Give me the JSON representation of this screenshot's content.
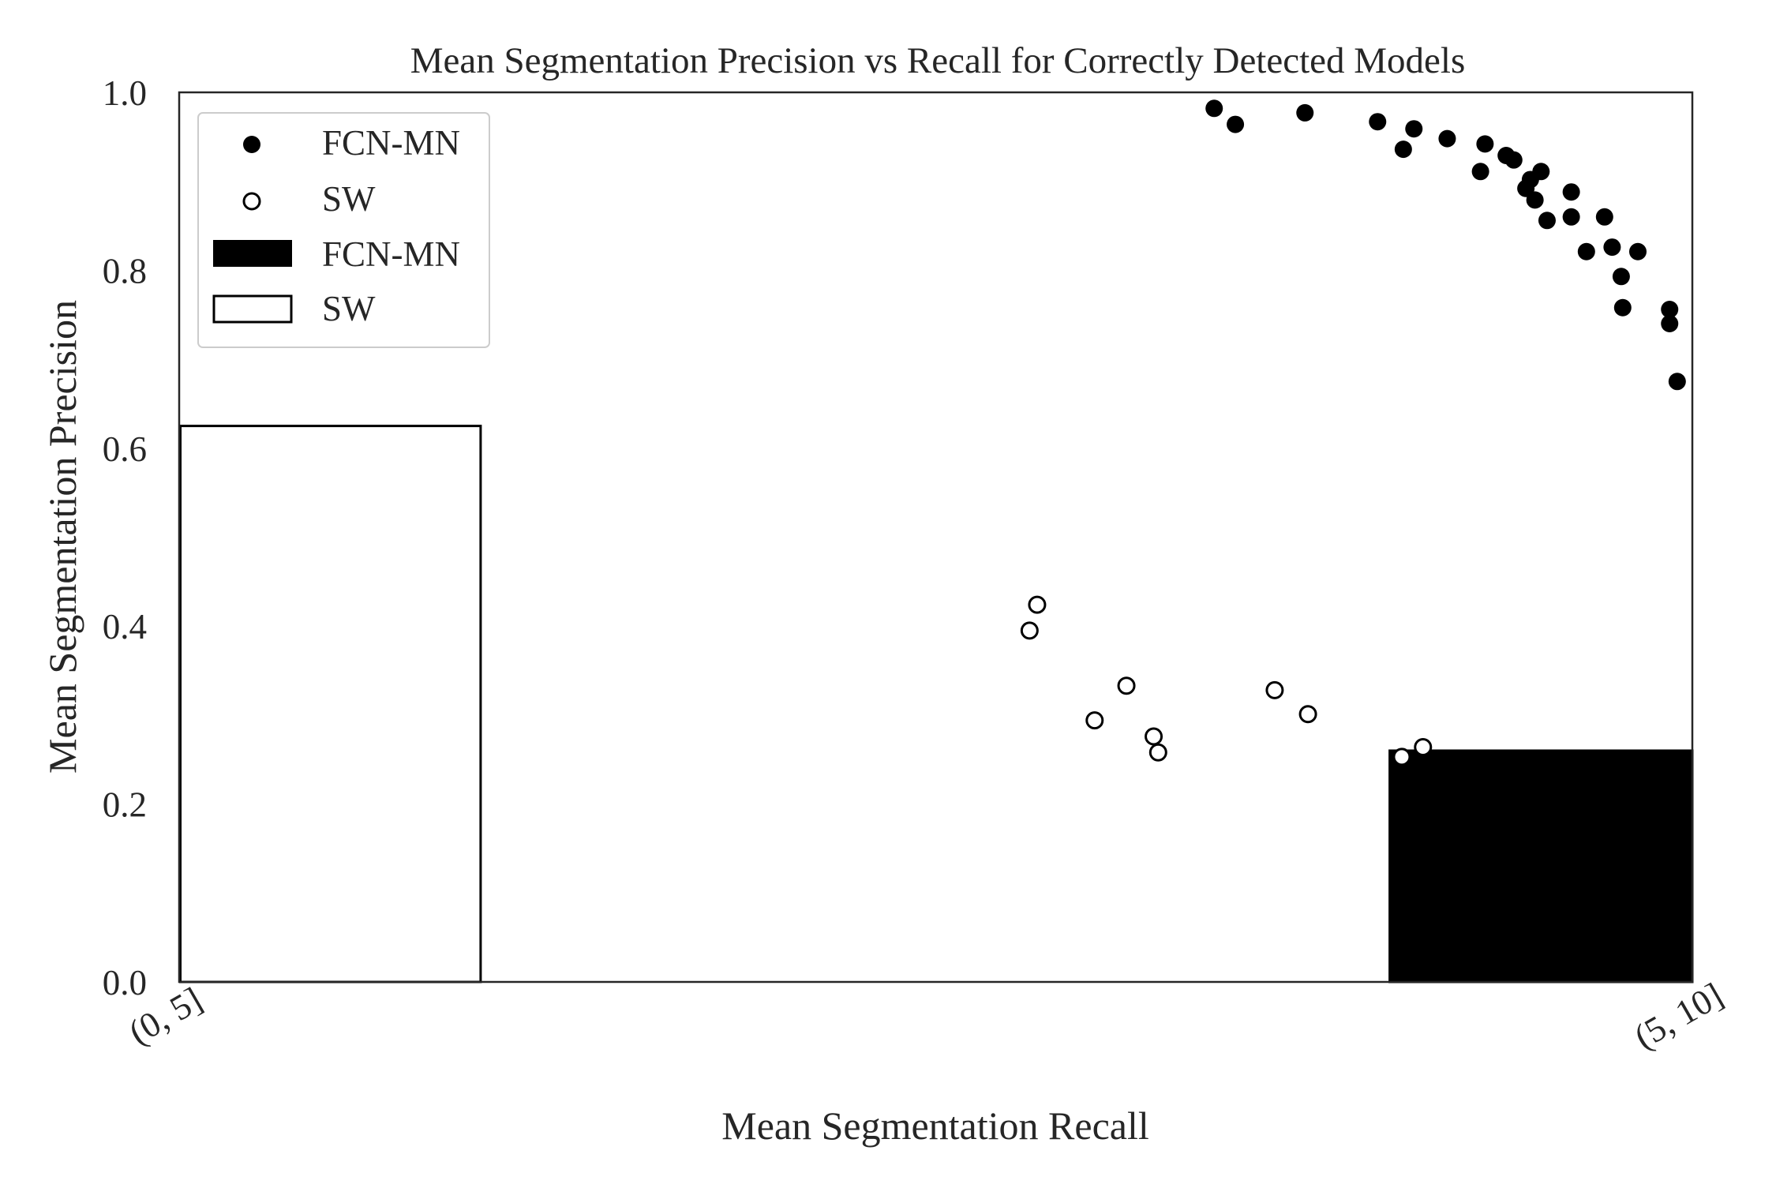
{
  "chart_data": {
    "type": "scatter",
    "title": "Mean Segmentation Precision vs Recall for Correctly Detected Models",
    "xlabel": "Mean Segmentation Recall",
    "ylabel": "Mean Segmentation Precision",
    "ylim": [
      0,
      1
    ],
    "xlim": [
      0,
      1
    ],
    "y_ticks": [
      "0.0",
      "0.2",
      "0.4",
      "0.6",
      "0.8",
      "1.0"
    ],
    "x_category_ticks": [
      "(0, 5]",
      "(5, 10]"
    ],
    "grid": false,
    "legend_position": "top-left",
    "bars": {
      "categories": [
        "(0, 5]",
        "(5, 10]"
      ],
      "series": [
        {
          "name": "SW",
          "fill": "#ffffff",
          "values": [
            0.625,
            null
          ]
        },
        {
          "name": "FCN-MN",
          "fill": "#000000",
          "values": [
            null,
            0.26
          ]
        }
      ]
    },
    "series": [
      {
        "name": "FCN-MN",
        "marker": "filled",
        "color": "#000000",
        "points": [
          [
            0.684,
            0.982
          ],
          [
            0.698,
            0.964
          ],
          [
            0.744,
            0.977
          ],
          [
            0.792,
            0.967
          ],
          [
            0.809,
            0.936
          ],
          [
            0.816,
            0.959
          ],
          [
            0.838,
            0.948
          ],
          [
            0.86,
            0.911
          ],
          [
            0.863,
            0.942
          ],
          [
            0.877,
            0.929
          ],
          [
            0.882,
            0.924
          ],
          [
            0.89,
            0.892
          ],
          [
            0.893,
            0.902
          ],
          [
            0.896,
            0.879
          ],
          [
            0.9,
            0.911
          ],
          [
            0.904,
            0.856
          ],
          [
            0.92,
            0.86
          ],
          [
            0.92,
            0.888
          ],
          [
            0.93,
            0.821
          ],
          [
            0.942,
            0.86
          ],
          [
            0.947,
            0.826
          ],
          [
            0.953,
            0.793
          ],
          [
            0.954,
            0.758
          ],
          [
            0.964,
            0.821
          ],
          [
            0.985,
            0.756
          ],
          [
            0.985,
            0.74
          ],
          [
            0.99,
            0.675
          ]
        ]
      },
      {
        "name": "SW",
        "marker": "hollow",
        "color": "#000000",
        "points": [
          [
            0.562,
            0.395
          ],
          [
            0.567,
            0.424
          ],
          [
            0.605,
            0.294
          ],
          [
            0.626,
            0.333
          ],
          [
            0.644,
            0.276
          ],
          [
            0.647,
            0.258
          ],
          [
            0.724,
            0.328
          ],
          [
            0.746,
            0.301
          ],
          [
            0.808,
            0.253
          ],
          [
            0.822,
            0.264
          ]
        ]
      }
    ]
  },
  "legend": {
    "items": [
      {
        "label": "FCN-MN",
        "kind": "filled-marker"
      },
      {
        "label": "SW",
        "kind": "hollow-marker"
      },
      {
        "label": "FCN-MN",
        "kind": "filled-patch"
      },
      {
        "label": "SW",
        "kind": "hollow-patch"
      }
    ]
  }
}
